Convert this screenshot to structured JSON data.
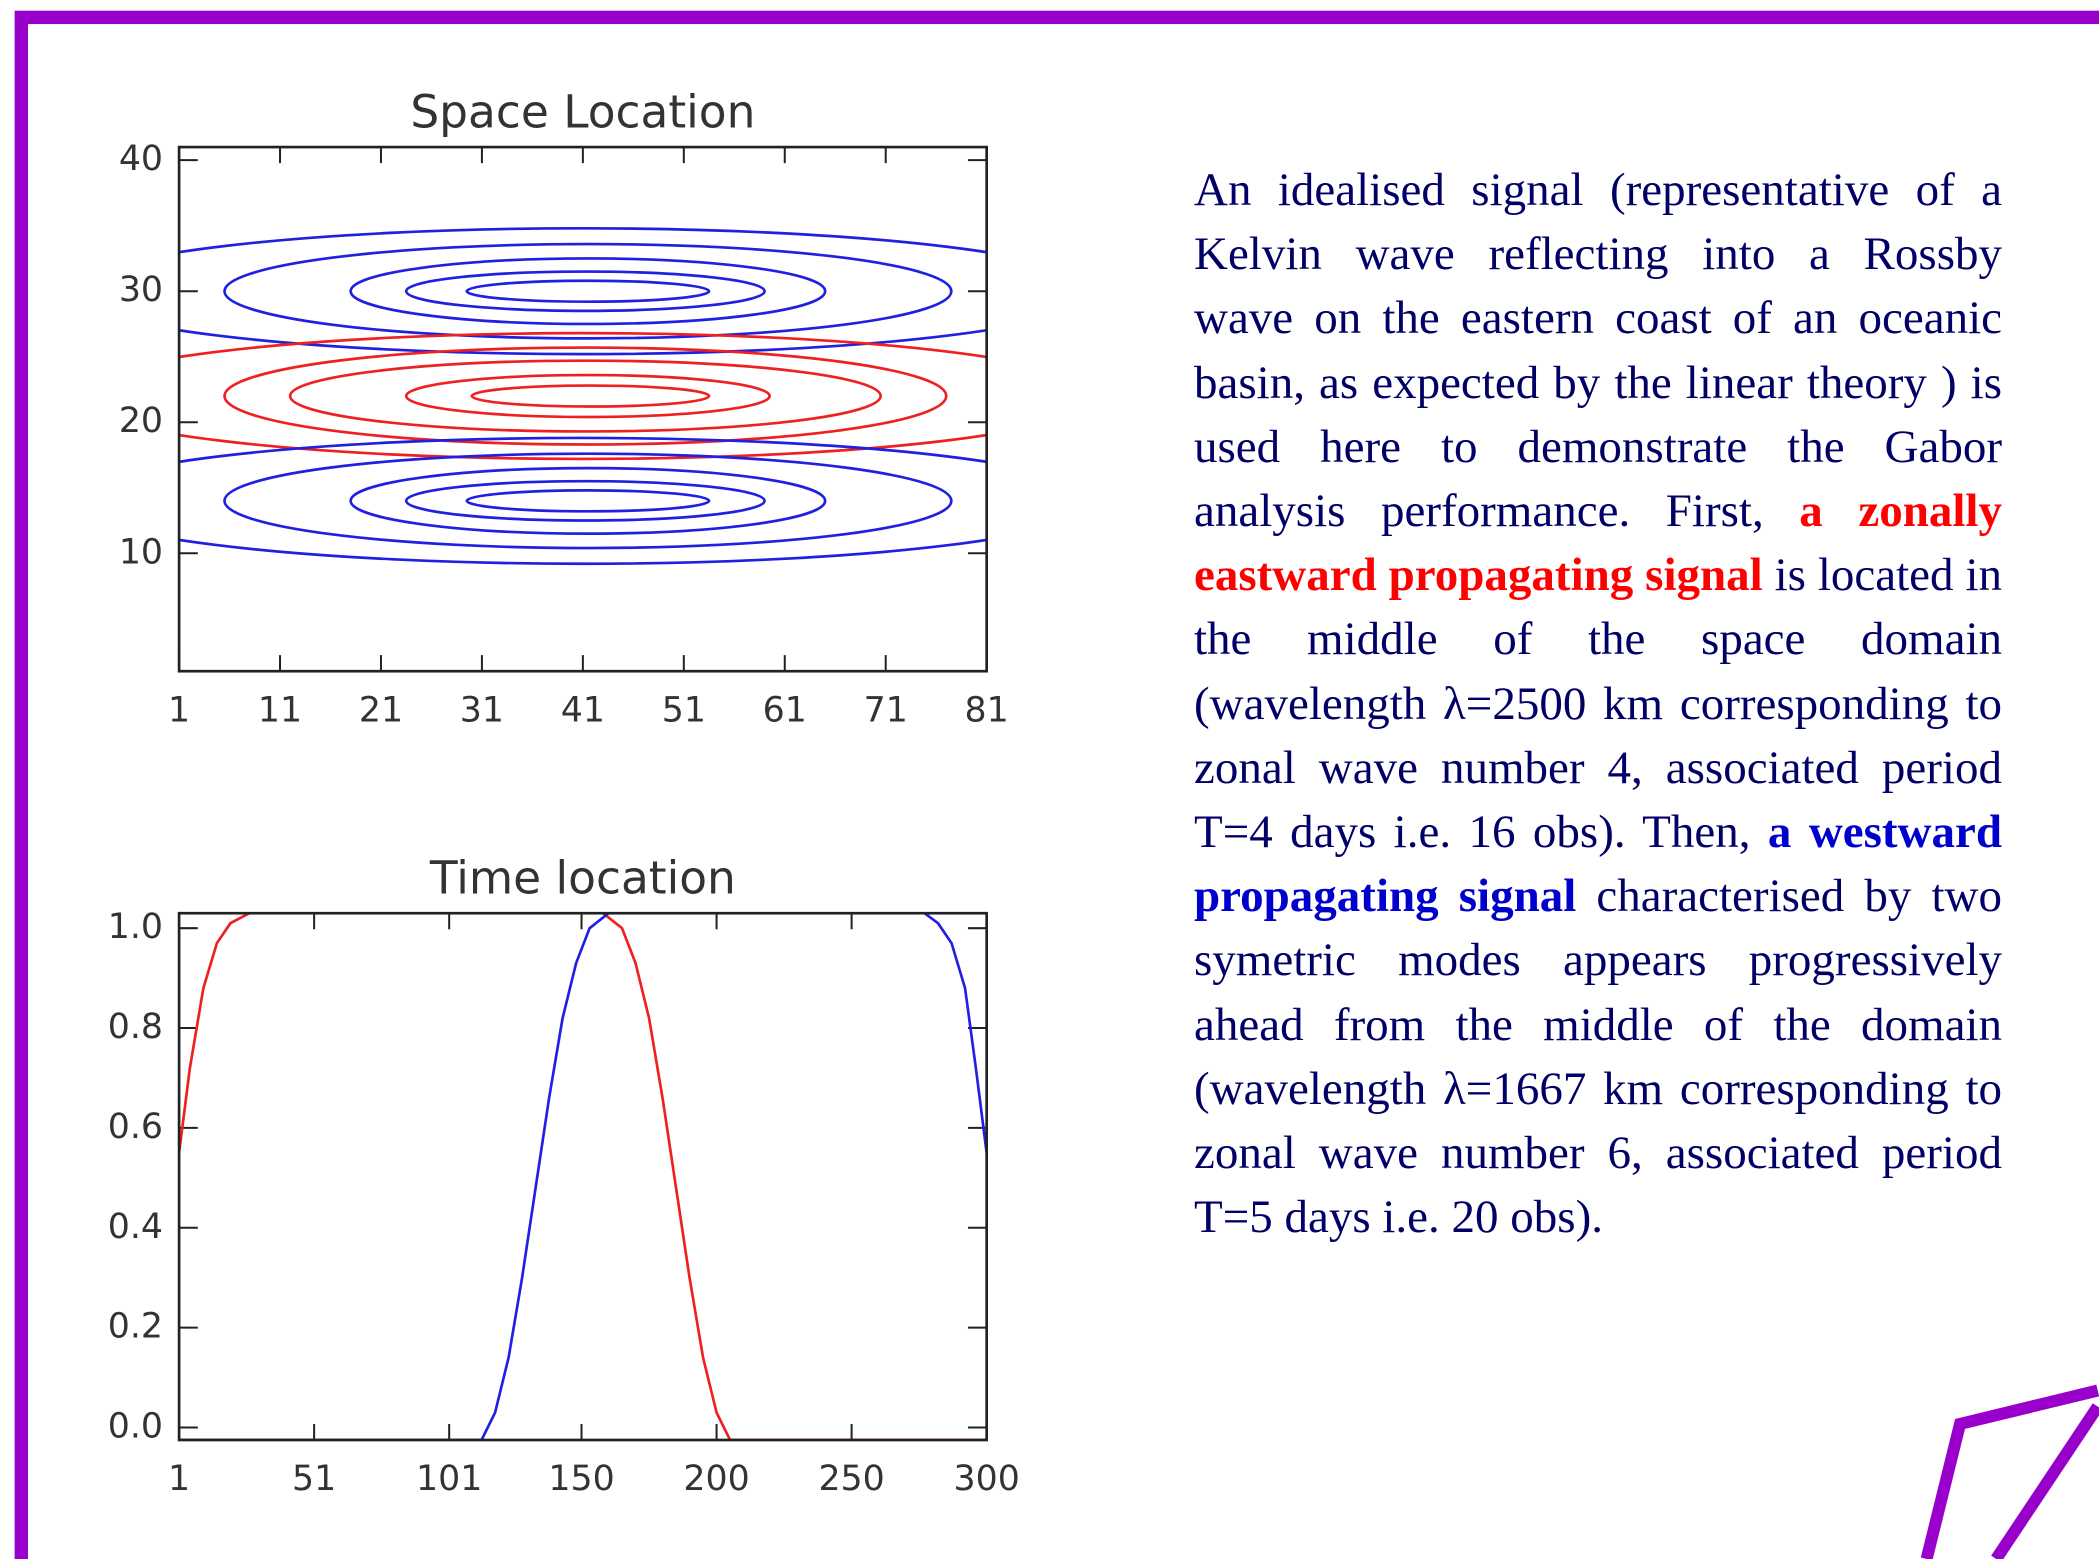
{
  "chart_data": [
    {
      "type": "contour",
      "title": "Space Location",
      "xlim": [
        1,
        81
      ],
      "ylim": [
        1,
        41
      ],
      "xticks": [
        1,
        11,
        21,
        31,
        41,
        51,
        61,
        71,
        81
      ],
      "yticks": [
        10,
        20,
        30,
        40
      ],
      "contours": [
        {
          "color": "#2020e0",
          "x": [
            29.5,
            53.5
          ],
          "y": [
            29.2,
            30.8
          ]
        },
        {
          "color": "#2020e0",
          "x": [
            23.5,
            59
          ],
          "y": [
            28.5,
            31.5
          ]
        },
        {
          "color": "#2020e0",
          "x": [
            18,
            65
          ],
          "y": [
            27.5,
            32.5
          ]
        },
        {
          "color": "#2020e0",
          "x": [
            5.5,
            77.5
          ],
          "y": [
            26.4,
            33.6
          ]
        },
        {
          "color": "#2020e0",
          "x": [
            -10,
            92
          ],
          "y": [
            25.2,
            34.8
          ]
        },
        {
          "color": "#ee2020",
          "x": [
            30,
            53.5
          ],
          "y": [
            21.2,
            22.8
          ]
        },
        {
          "color": "#ee2020",
          "x": [
            23.5,
            59.5
          ],
          "y": [
            20.4,
            23.6
          ]
        },
        {
          "color": "#ee2020",
          "x": [
            12,
            70.5
          ],
          "y": [
            19.3,
            24.7
          ]
        },
        {
          "color": "#ee2020",
          "x": [
            5.5,
            77
          ],
          "y": [
            18.3,
            25.7
          ]
        },
        {
          "color": "#ee2020",
          "x": [
            -10,
            92
          ],
          "y": [
            17.2,
            26.8
          ]
        },
        {
          "color": "#2020e0",
          "x": [
            29.5,
            53.5
          ],
          "y": [
            13.2,
            14.8
          ]
        },
        {
          "color": "#2020e0",
          "x": [
            23.5,
            59
          ],
          "y": [
            12.5,
            15.5
          ]
        },
        {
          "color": "#2020e0",
          "x": [
            18,
            65
          ],
          "y": [
            11.5,
            16.5
          ]
        },
        {
          "color": "#2020e0",
          "x": [
            5.5,
            77.5
          ],
          "y": [
            10.4,
            17.6
          ]
        },
        {
          "color": "#2020e0",
          "x": [
            -10,
            92
          ],
          "y": [
            9.2,
            18.8
          ]
        }
      ]
    },
    {
      "type": "line",
      "title": "Time location",
      "xlim": [
        1,
        300
      ],
      "ylim": [
        -0.025,
        1.03
      ],
      "xticks": [
        1,
        51,
        101,
        150,
        200,
        250,
        300
      ],
      "yticks": [
        {
          "value": 0,
          "label": "0.0"
        },
        0.2,
        0.4,
        0.6,
        0.8,
        {
          "value": 1,
          "label": "1.0"
        }
      ],
      "series": [
        {
          "color": "#ee2020",
          "x": [
            1,
            5,
            10,
            15,
            20,
            27,
            158,
            165,
            170,
            175,
            180,
            185,
            190,
            195,
            200,
            205,
            300
          ],
          "values": [
            0.55,
            0.72,
            0.88,
            0.97,
            1.01,
            1.03,
            1.03,
            1.0,
            0.93,
            0.82,
            0.66,
            0.48,
            0.3,
            0.14,
            0.03,
            -0.025,
            -0.025
          ]
        },
        {
          "color": "#2020e0",
          "x": [
            1,
            113,
            118,
            123,
            128,
            133,
            138,
            143,
            148,
            153,
            160,
            277,
            282,
            287,
            292,
            296,
            300
          ],
          "values": [
            -0.025,
            -0.025,
            0.03,
            0.14,
            0.3,
            0.48,
            0.66,
            0.82,
            0.93,
            1.0,
            1.03,
            1.03,
            1.01,
            0.97,
            0.88,
            0.72,
            0.55
          ]
        }
      ]
    }
  ],
  "description": {
    "runs": [
      {
        "text": "An idealised signal (representative of a Kelvin wave reflecting into a Rossby wave on the eastern coast of an oceanic basin, as expected by the linear theory ) is used here to demonstrate the Gabor analysis performance. First, ",
        "color": "#000066",
        "bold": false
      },
      {
        "text": "a zonally eastward propagating signal",
        "color": "#ff0000",
        "bold": true
      },
      {
        "text": " is located in the middle of the space domain (wavelength λ=2500 km corresponding to zonal wave number 4, associated period T=4 days i.e. 16 obs). Then, ",
        "color": "#000066",
        "bold": false
      },
      {
        "text": "a westward propagating signal",
        "color": "#0000cc",
        "bold": true
      },
      {
        "text": " characterised by two symetric modes appears progressively ahead from the middle of the domain (wavelength λ=1667 km corresponding to zonal wave number 6, associated period T=5 days i.e. 20 obs).",
        "color": "#000066",
        "bold": false
      }
    ]
  }
}
